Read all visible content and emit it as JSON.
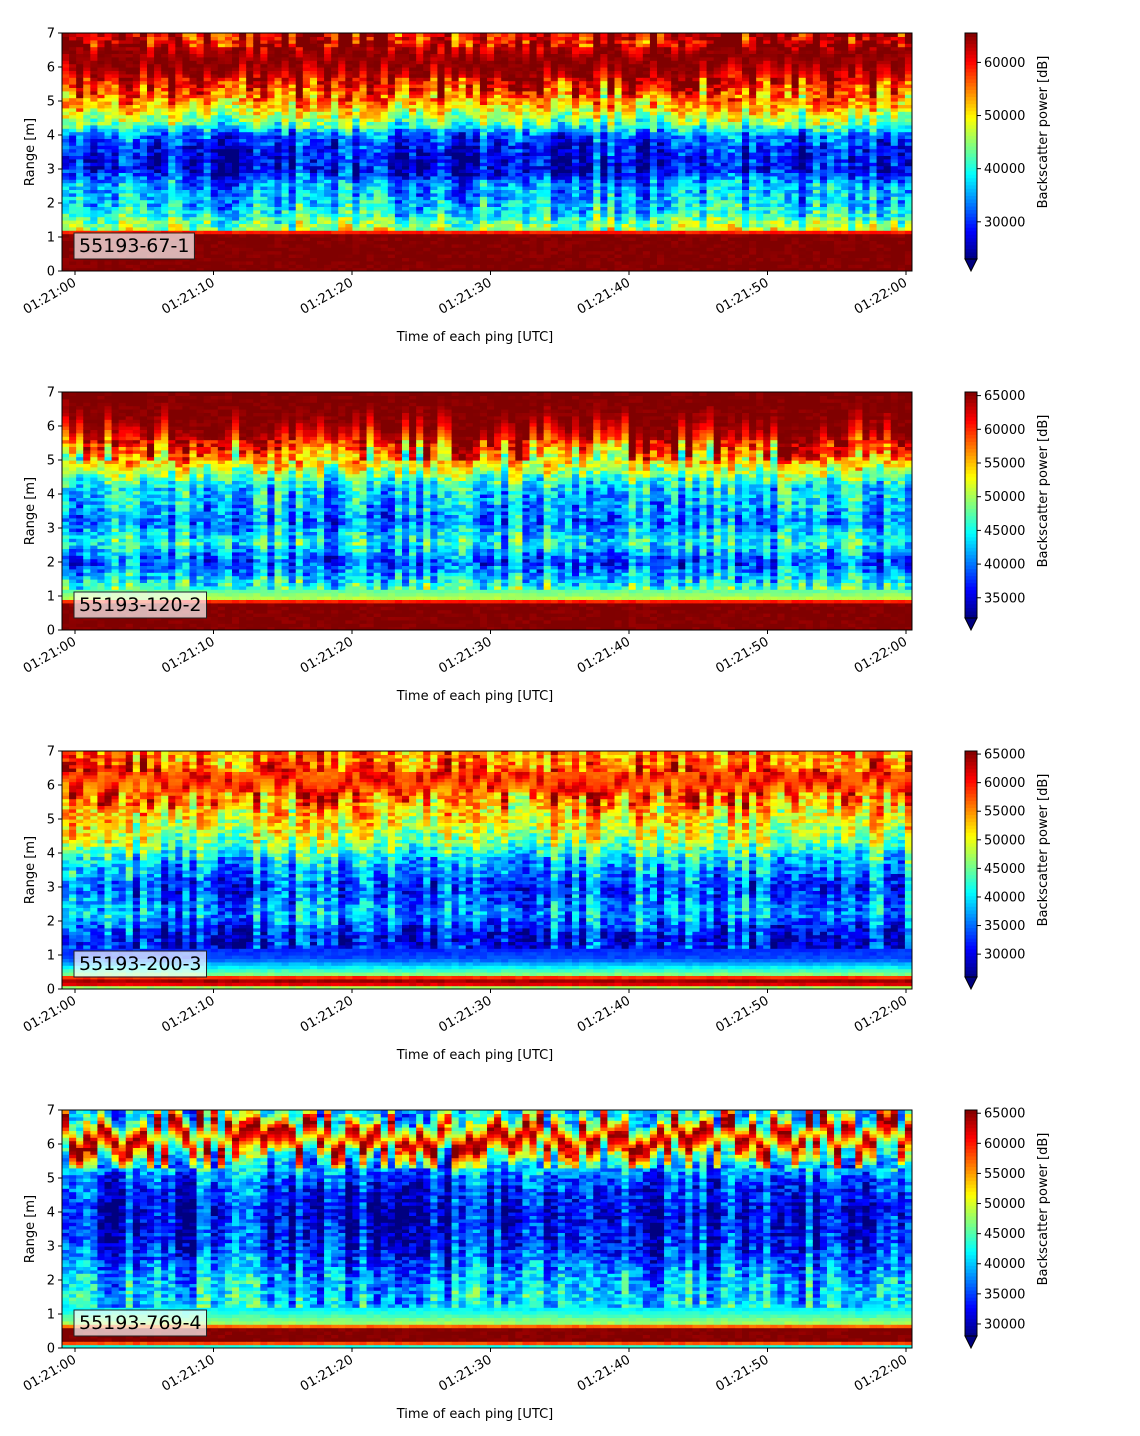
{
  "chart_data": [
    {
      "type": "heatmap",
      "label": "55193-67-1",
      "xlabel": "Time of each ping [UTC]",
      "ylabel": "Range [m]",
      "colorbar_label": "Backscatter power [dB]",
      "colormap": "jet",
      "x_ticks": [
        "01:21:00",
        "01:21:10",
        "01:21:20",
        "01:21:30",
        "01:21:40",
        "01:21:50",
        "01:22:00"
      ],
      "y_ticks": [
        "0",
        "1",
        "2",
        "3",
        "4",
        "5",
        "6",
        "7"
      ],
      "ylim": [
        0,
        7
      ],
      "xlim": [
        "01:21:00",
        "01:22:00"
      ],
      "clim": [
        23000,
        65535
      ],
      "colorbar_ticks": [
        "30000",
        "40000",
        "50000",
        "60000"
      ],
      "profile": [
        {
          "range": 0.0,
          "level": 1.0
        },
        {
          "range": 0.2,
          "level": 1.0
        },
        {
          "range": 1.1,
          "level": 1.0
        },
        {
          "range": 1.25,
          "level": 0.55
        },
        {
          "range": 1.7,
          "level": 0.38
        },
        {
          "range": 2.2,
          "level": 0.3
        },
        {
          "range": 2.6,
          "level": 0.27
        },
        {
          "range": 3.0,
          "level": 0.1
        },
        {
          "range": 3.5,
          "level": 0.12
        },
        {
          "range": 4.0,
          "level": 0.22
        },
        {
          "range": 4.3,
          "level": 0.45
        },
        {
          "range": 4.8,
          "level": 0.66
        },
        {
          "range": 5.3,
          "level": 0.82
        },
        {
          "range": 5.7,
          "level": 0.93
        },
        {
          "range": 6.0,
          "level": 1.0
        },
        {
          "range": 6.6,
          "level": 0.98
        },
        {
          "range": 7.0,
          "level": 0.85
        }
      ],
      "surface_band": [
        5.7,
        6.6
      ],
      "surface_ripple": 0.08
    },
    {
      "type": "heatmap",
      "label": "55193-120-2",
      "xlabel": "Time of each ping [UTC]",
      "ylabel": "Range [m]",
      "colorbar_label": "Backscatter power [dB]",
      "colormap": "jet",
      "x_ticks": [
        "01:21:00",
        "01:21:10",
        "01:21:20",
        "01:21:30",
        "01:21:40",
        "01:21:50",
        "01:22:00"
      ],
      "y_ticks": [
        "0",
        "1",
        "2",
        "3",
        "4",
        "5",
        "6",
        "7"
      ],
      "ylim": [
        0,
        7
      ],
      "xlim": [
        "01:21:00",
        "01:22:00"
      ],
      "clim": [
        32000,
        65535
      ],
      "colorbar_ticks": [
        "35000",
        "40000",
        "45000",
        "50000",
        "55000",
        "60000",
        "65000"
      ],
      "profile": [
        {
          "range": 0.0,
          "level": 1.0
        },
        {
          "range": 0.2,
          "level": 1.0
        },
        {
          "range": 0.8,
          "level": 1.0
        },
        {
          "range": 0.95,
          "level": 0.55
        },
        {
          "range": 1.5,
          "level": 0.35
        },
        {
          "range": 2.0,
          "level": 0.2
        },
        {
          "range": 2.6,
          "level": 0.4
        },
        {
          "range": 3.2,
          "level": 0.25
        },
        {
          "range": 3.6,
          "level": 0.3
        },
        {
          "range": 4.2,
          "level": 0.35
        },
        {
          "range": 4.8,
          "level": 0.6
        },
        {
          "range": 5.3,
          "level": 0.8
        },
        {
          "range": 5.8,
          "level": 0.95
        },
        {
          "range": 6.2,
          "level": 1.0
        },
        {
          "range": 7.0,
          "level": 1.0
        }
      ],
      "surface_band": [
        5.6,
        7.0
      ],
      "surface_ripple": 0.1
    },
    {
      "type": "heatmap",
      "label": "55193-200-3",
      "xlabel": "Time of each ping [UTC]",
      "ylabel": "Range [m]",
      "colorbar_label": "Backscatter power [dB]",
      "colormap": "jet",
      "x_ticks": [
        "01:21:00",
        "01:21:10",
        "01:21:20",
        "01:21:30",
        "01:21:40",
        "01:21:50",
        "01:22:00"
      ],
      "y_ticks": [
        "0",
        "1",
        "2",
        "3",
        "4",
        "5",
        "6",
        "7"
      ],
      "ylim": [
        0,
        7
      ],
      "xlim": [
        "01:21:00",
        "01:22:00"
      ],
      "clim": [
        26000,
        65535
      ],
      "colorbar_ticks": [
        "30000",
        "35000",
        "40000",
        "45000",
        "50000",
        "55000",
        "60000",
        "65000"
      ],
      "profile": [
        {
          "range": 0.0,
          "level": 0.35
        },
        {
          "range": 0.15,
          "level": 0.9
        },
        {
          "range": 0.3,
          "level": 1.0
        },
        {
          "range": 0.45,
          "level": 0.5
        },
        {
          "range": 0.9,
          "level": 0.2
        },
        {
          "range": 1.5,
          "level": 0.12
        },
        {
          "range": 2.2,
          "level": 0.3
        },
        {
          "range": 3.0,
          "level": 0.2
        },
        {
          "range": 3.8,
          "level": 0.35
        },
        {
          "range": 4.4,
          "level": 0.55
        },
        {
          "range": 5.0,
          "level": 0.65
        },
        {
          "range": 5.6,
          "level": 0.72
        },
        {
          "range": 6.0,
          "level": 0.95
        },
        {
          "range": 6.3,
          "level": 0.8
        },
        {
          "range": 7.0,
          "level": 0.75
        }
      ],
      "surface_band": [
        5.8,
        6.4
      ],
      "surface_ripple": 0.08
    },
    {
      "type": "heatmap",
      "label": "55193-769-4",
      "xlabel": "Time of each ping [UTC]",
      "ylabel": "Range [m]",
      "colorbar_label": "Backscatter power [dB]",
      "colormap": "jet",
      "x_ticks": [
        "01:21:00",
        "01:21:10",
        "01:21:20",
        "01:21:30",
        "01:21:40",
        "01:21:50",
        "01:22:00"
      ],
      "y_ticks": [
        "0",
        "1",
        "2",
        "3",
        "4",
        "5",
        "6",
        "7"
      ],
      "ylim": [
        0,
        7
      ],
      "xlim": [
        "01:21:00",
        "01:22:00"
      ],
      "clim": [
        28000,
        65535
      ],
      "colorbar_ticks": [
        "30000",
        "35000",
        "40000",
        "45000",
        "50000",
        "55000",
        "60000",
        "65000"
      ],
      "profile": [
        {
          "range": 0.0,
          "level": 0.2
        },
        {
          "range": 0.2,
          "level": 1.0
        },
        {
          "range": 0.6,
          "level": 1.0
        },
        {
          "range": 0.7,
          "level": 0.55
        },
        {
          "range": 1.2,
          "level": 0.35
        },
        {
          "range": 2.0,
          "level": 0.3
        },
        {
          "range": 3.0,
          "level": 0.15
        },
        {
          "range": 4.0,
          "level": 0.1
        },
        {
          "range": 5.0,
          "level": 0.2
        },
        {
          "range": 5.6,
          "level": 0.45
        },
        {
          "range": 6.0,
          "level": 0.85
        },
        {
          "range": 6.3,
          "level": 1.0
        },
        {
          "range": 6.6,
          "level": 0.6
        },
        {
          "range": 7.0,
          "level": 0.3
        }
      ],
      "surface_band": [
        5.9,
        6.5
      ],
      "surface_ripple": 0.08
    }
  ]
}
